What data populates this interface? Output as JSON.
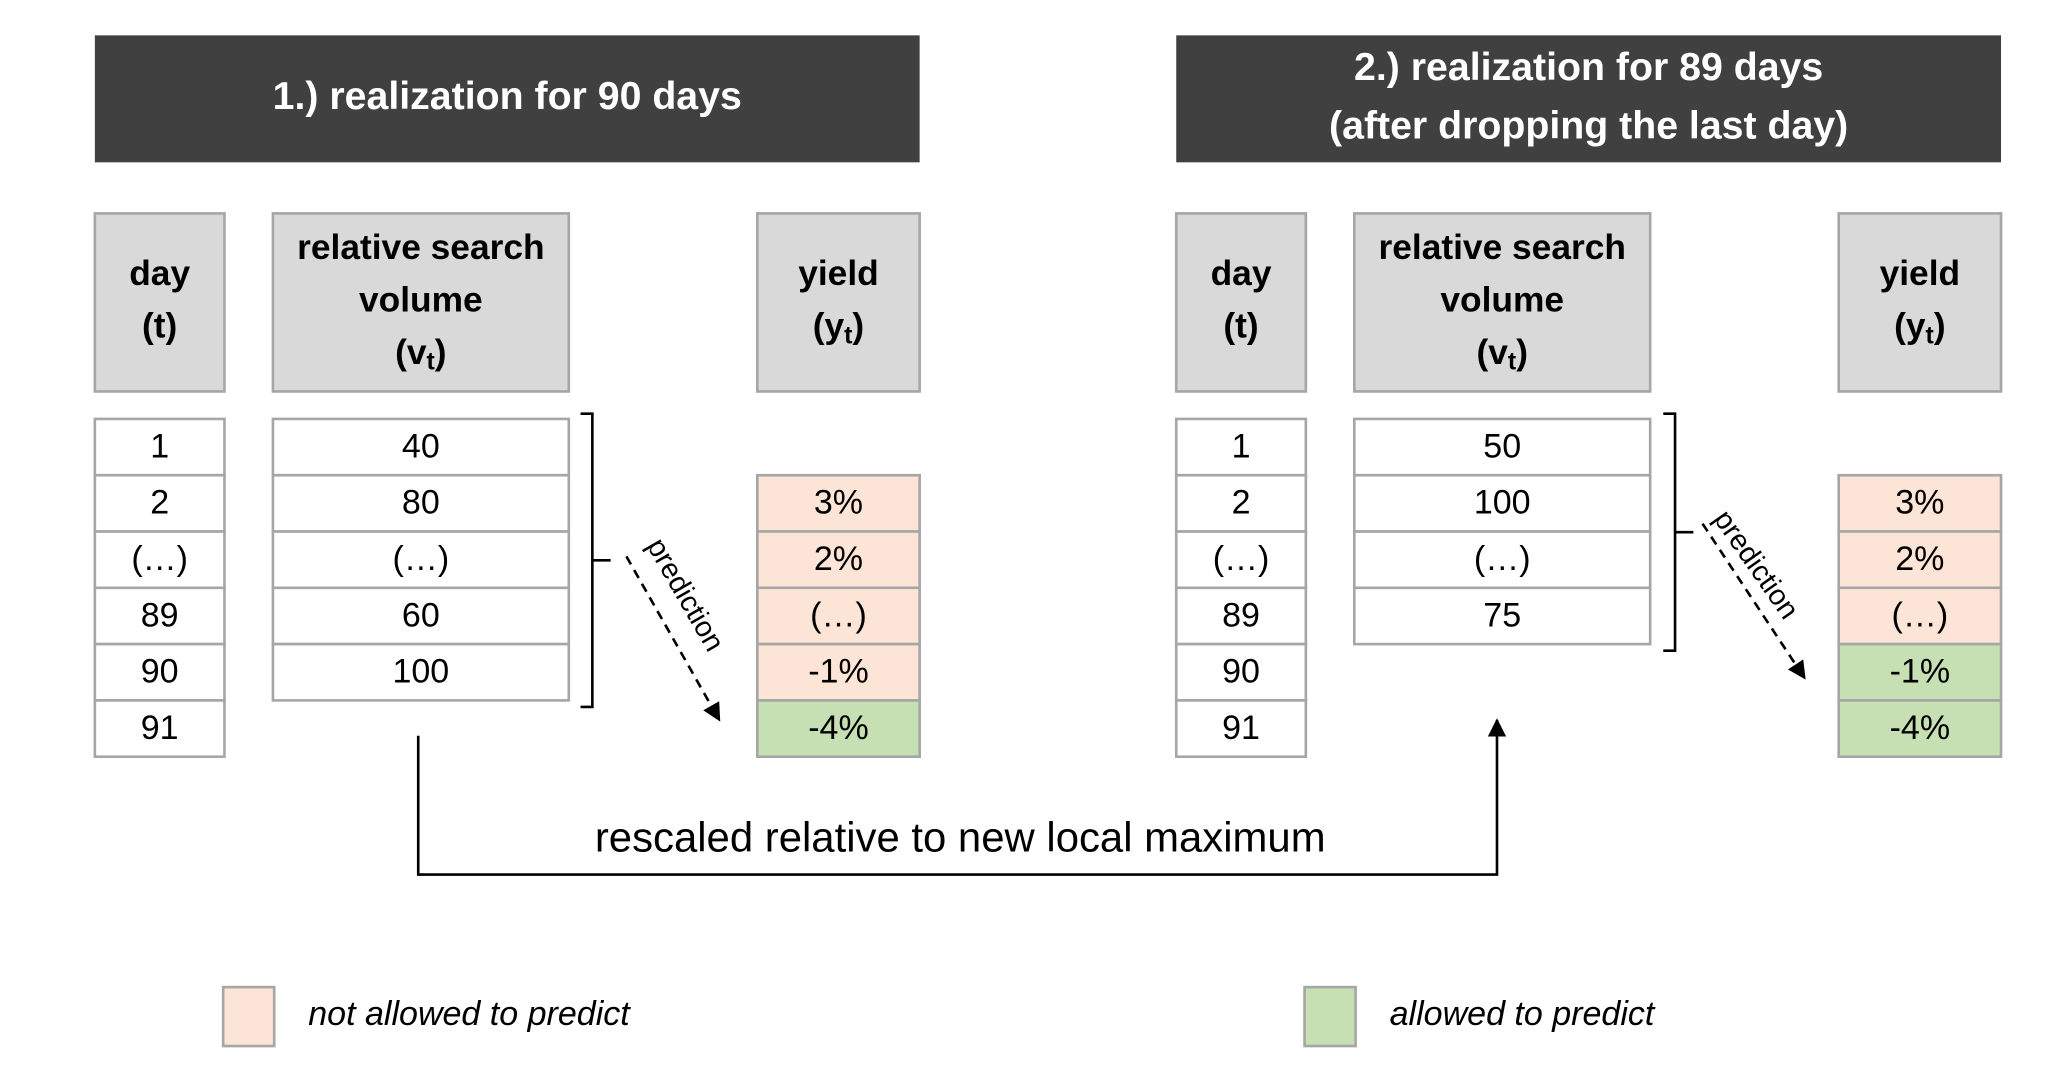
{
  "panels": [
    {
      "title": [
        "1.) realization for 90 days"
      ],
      "columns": [
        {
          "header": [
            [
              "day"
            ],
            [
              "(t)"
            ]
          ],
          "cells": [
            "1",
            "2",
            "(…)",
            "89",
            "90",
            "91"
          ]
        },
        {
          "header": [
            [
              "relative search"
            ],
            [
              "volume"
            ],
            [
              "(v",
              "t",
              ")"
            ]
          ],
          "cells": [
            "40",
            "80",
            "(…)",
            "60",
            "100"
          ]
        },
        {
          "header": [
            [
              "yield"
            ],
            [
              "(y",
              "t",
              ")"
            ]
          ],
          "cells": [
            null,
            {
              "text": "3%",
              "allowed": false
            },
            {
              "text": "2%",
              "allowed": false
            },
            {
              "text": "(…)",
              "allowed": false
            },
            {
              "text": "-1%",
              "allowed": false
            },
            {
              "text": "-4%",
              "allowed": true
            }
          ]
        }
      ],
      "prediction": "prediction"
    },
    {
      "title": [
        "2.) realization for 89 days",
        "(after dropping the last day)"
      ],
      "columns": [
        {
          "header": [
            [
              "day"
            ],
            [
              "(t)"
            ]
          ],
          "cells": [
            "1",
            "2",
            "(…)",
            "89",
            "90",
            "91"
          ]
        },
        {
          "header": [
            [
              "relative search"
            ],
            [
              "volume"
            ],
            [
              "(v",
              "t",
              ")"
            ]
          ],
          "cells": [
            "50",
            "100",
            "(…)",
            "75"
          ]
        },
        {
          "header": [
            [
              "yield"
            ],
            [
              "(y",
              "t",
              ")"
            ]
          ],
          "cells": [
            null,
            {
              "text": "3%",
              "allowed": false
            },
            {
              "text": "2%",
              "allowed": false
            },
            {
              "text": "(…)",
              "allowed": false
            },
            {
              "text": "-1%",
              "allowed": true
            },
            {
              "text": "-4%",
              "allowed": true
            }
          ]
        }
      ],
      "prediction": "prediction"
    }
  ],
  "rescale_label": "rescaled relative to new local maximum",
  "legend": [
    {
      "label": "not allowed to predict",
      "color": "#fce4d6"
    },
    {
      "label": "allowed to predict",
      "color": "#c6e0b4"
    }
  ]
}
